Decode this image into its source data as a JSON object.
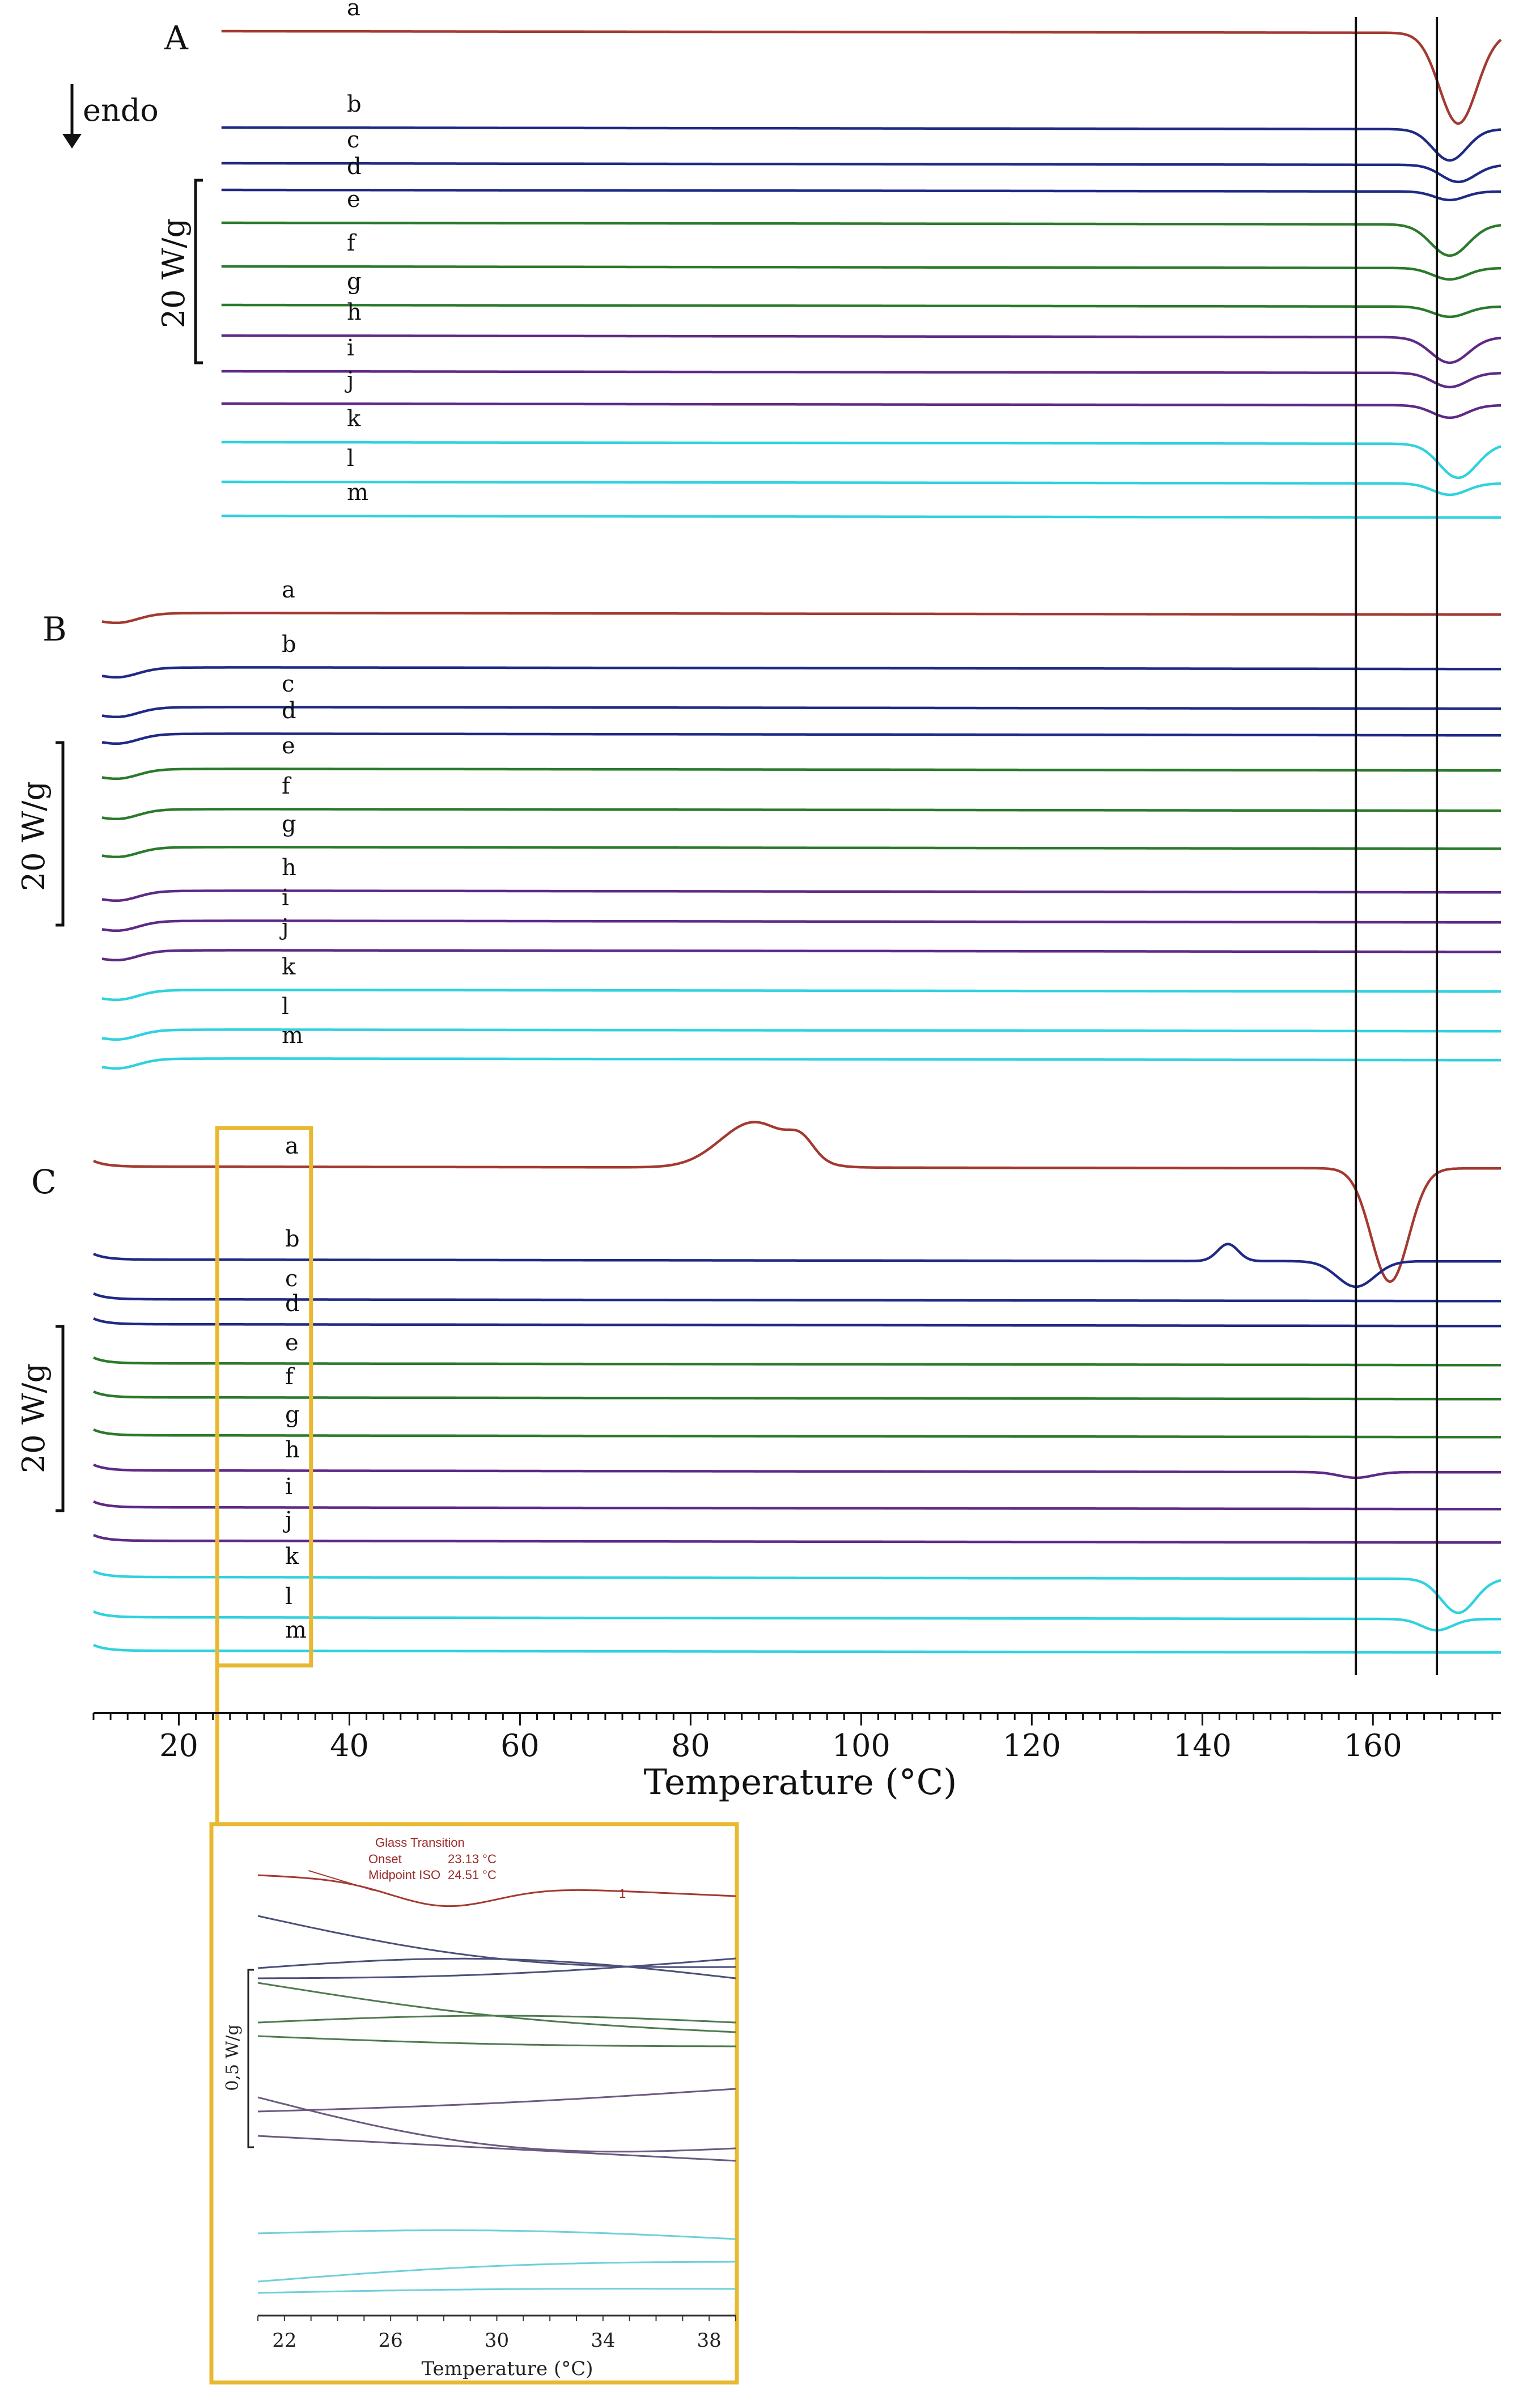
{
  "chart_data": {
    "type": "line",
    "subtype": "DSC thermograms (stacked)",
    "xlabel": "Temperature (°C)",
    "xlim": [
      10,
      175
    ],
    "x_ticks": [
      20,
      40,
      60,
      80,
      100,
      120,
      140,
      160
    ],
    "direction_label": "endo",
    "colors": {
      "a": "#a33a30",
      "b": "#1f2a86",
      "c": "#1f2a86",
      "d": "#1f2a86",
      "e": "#2b7a2b",
      "f": "#2b7a2b",
      "g": "#2b7a2b",
      "h": "#5e2a86",
      "i": "#5e2a86",
      "j": "#5e2a86",
      "k": "#2fd2de",
      "l": "#2fd2de",
      "m": "#2fd2de"
    },
    "reference_lines_celsius": [
      158,
      167.5
    ],
    "panels": [
      {
        "id": "A",
        "scale_bar": "20 W/g",
        "x_start": 25,
        "curves": [
          {
            "label": "a",
            "events": [
              {
                "type": "melting_endotherm",
                "center": 170,
                "depth": 1.6,
                "width": 2.2
              }
            ]
          },
          {
            "label": "b",
            "events": [
              {
                "type": "melting_endotherm",
                "center": 169,
                "depth": 0.55,
                "width": 2.0
              }
            ]
          },
          {
            "label": "c",
            "events": [
              {
                "type": "melting_endotherm",
                "center": 170,
                "depth": 0.3,
                "width": 2.0
              }
            ]
          },
          {
            "label": "d",
            "events": [
              {
                "type": "melting_endotherm",
                "center": 169,
                "depth": 0.15,
                "width": 1.8
              }
            ]
          },
          {
            "label": "e",
            "events": [
              {
                "type": "melting_endotherm",
                "center": 169,
                "depth": 0.55,
                "width": 2.2
              }
            ]
          },
          {
            "label": "f",
            "events": [
              {
                "type": "melting_endotherm",
                "center": 169,
                "depth": 0.2,
                "width": 2.0
              }
            ]
          },
          {
            "label": "g",
            "events": [
              {
                "type": "melting_endotherm",
                "center": 169,
                "depth": 0.18,
                "width": 2.0
              }
            ]
          },
          {
            "label": "h",
            "events": [
              {
                "type": "melting_endotherm",
                "center": 169,
                "depth": 0.45,
                "width": 2.2
              }
            ]
          },
          {
            "label": "i",
            "events": [
              {
                "type": "melting_endotherm",
                "center": 169,
                "depth": 0.25,
                "width": 2.0
              }
            ]
          },
          {
            "label": "j",
            "events": [
              {
                "type": "melting_endotherm",
                "center": 169,
                "depth": 0.22,
                "width": 2.0
              }
            ]
          },
          {
            "label": "k",
            "events": [
              {
                "type": "melting_endotherm",
                "center": 170,
                "depth": 0.6,
                "width": 2.2
              }
            ]
          },
          {
            "label": "l",
            "events": [
              {
                "type": "melting_endotherm",
                "center": 169,
                "depth": 0.2,
                "width": 2.0
              }
            ]
          },
          {
            "label": "m",
            "events": []
          }
        ]
      },
      {
        "id": "B",
        "scale_bar": "20 W/g",
        "x_start": 11,
        "curves": [
          {
            "label": "a",
            "events": []
          },
          {
            "label": "b",
            "events": []
          },
          {
            "label": "c",
            "events": []
          },
          {
            "label": "d",
            "events": []
          },
          {
            "label": "e",
            "events": []
          },
          {
            "label": "f",
            "events": []
          },
          {
            "label": "g",
            "events": []
          },
          {
            "label": "h",
            "events": []
          },
          {
            "label": "i",
            "events": []
          },
          {
            "label": "j",
            "events": []
          },
          {
            "label": "k",
            "events": []
          },
          {
            "label": "l",
            "events": []
          },
          {
            "label": "m",
            "events": []
          }
        ]
      },
      {
        "id": "C",
        "scale_bar": "20 W/g",
        "x_start": 10,
        "curves": [
          {
            "label": "a",
            "events": [
              {
                "type": "cold_crystallization_exotherm",
                "center": 87.5,
                "height": 0.8,
                "width": 4
              },
              {
                "type": "shoulder",
                "center": 93,
                "height": 0.3,
                "width": 1.5
              },
              {
                "type": "melting_endotherm",
                "center": 162,
                "depth": 2.0,
                "width": 2.2
              }
            ]
          },
          {
            "label": "b",
            "events": [
              {
                "type": "exotherm",
                "center": 143,
                "height": 0.3,
                "width": 1.2
              },
              {
                "type": "melting_endotherm",
                "center": 158,
                "depth": 0.45,
                "width": 2.2
              }
            ]
          },
          {
            "label": "c",
            "events": []
          },
          {
            "label": "d",
            "events": []
          },
          {
            "label": "e",
            "events": []
          },
          {
            "label": "f",
            "events": []
          },
          {
            "label": "g",
            "events": []
          },
          {
            "label": "h",
            "events": [
              {
                "type": "melting_endotherm",
                "center": 158,
                "depth": 0.1,
                "width": 2.0
              }
            ]
          },
          {
            "label": "i",
            "events": []
          },
          {
            "label": "j",
            "events": []
          },
          {
            "label": "k",
            "events": [
              {
                "type": "melting_endotherm",
                "center": 170,
                "depth": 0.6,
                "width": 2.0
              }
            ]
          },
          {
            "label": "l",
            "events": [
              {
                "type": "melting_endotherm",
                "center": 167.5,
                "depth": 0.2,
                "width": 1.8
              }
            ]
          },
          {
            "label": "m",
            "events": []
          }
        ]
      }
    ],
    "zoom_box_range": [
      24.5,
      35.5
    ],
    "inset": {
      "xlabel": "Temperature (°C)",
      "xlim": [
        21,
        39
      ],
      "x_ticks": [
        22,
        26,
        30,
        34,
        38
      ],
      "scale_bar": "0,5 W/g",
      "annotation_title": "Glass Transition",
      "onset_label": "Onset",
      "onset_value": "23.13 °C",
      "midpoint_label": "Midpoint ISO",
      "midpoint_value": "24.51 °C",
      "marker": "1",
      "glass_transition_midpoint": 24.51,
      "colors": [
        "#a33a30",
        "#4b4f7a",
        "#4b4f7a",
        "#4b4f7a",
        "#4f7a4f",
        "#4f7a4f",
        "#4f7a4f",
        "#6b5a80",
        "#6b5a80",
        "#6b5a80",
        "#6fd0da",
        "#6fd0da",
        "#6fd0da"
      ]
    }
  }
}
